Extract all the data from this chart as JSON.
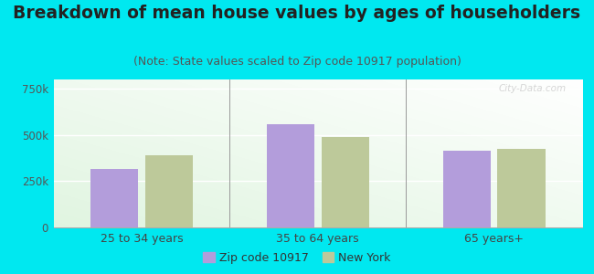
{
  "title": "Breakdown of mean house values by ages of householders",
  "subtitle": "(Note: State values scaled to Zip code 10917 population)",
  "categories": [
    "25 to 34 years",
    "35 to 64 years",
    "65 years+"
  ],
  "zip_values": [
    315000,
    560000,
    415000
  ],
  "ny_values": [
    390000,
    490000,
    425000
  ],
  "zip_color": "#b39ddb",
  "ny_color": "#bdc99a",
  "background_color": "#00e8f0",
  "ylim": [
    0,
    800000
  ],
  "yticks": [
    0,
    250000,
    500000,
    750000
  ],
  "ytick_labels": [
    "0",
    "250k",
    "500k",
    "750k"
  ],
  "title_fontsize": 13.5,
  "subtitle_fontsize": 9,
  "legend_labels": [
    "Zip code 10917",
    "New York"
  ],
  "watermark": "City-Data.com",
  "bar_width": 0.27,
  "bar_gap": 0.04
}
